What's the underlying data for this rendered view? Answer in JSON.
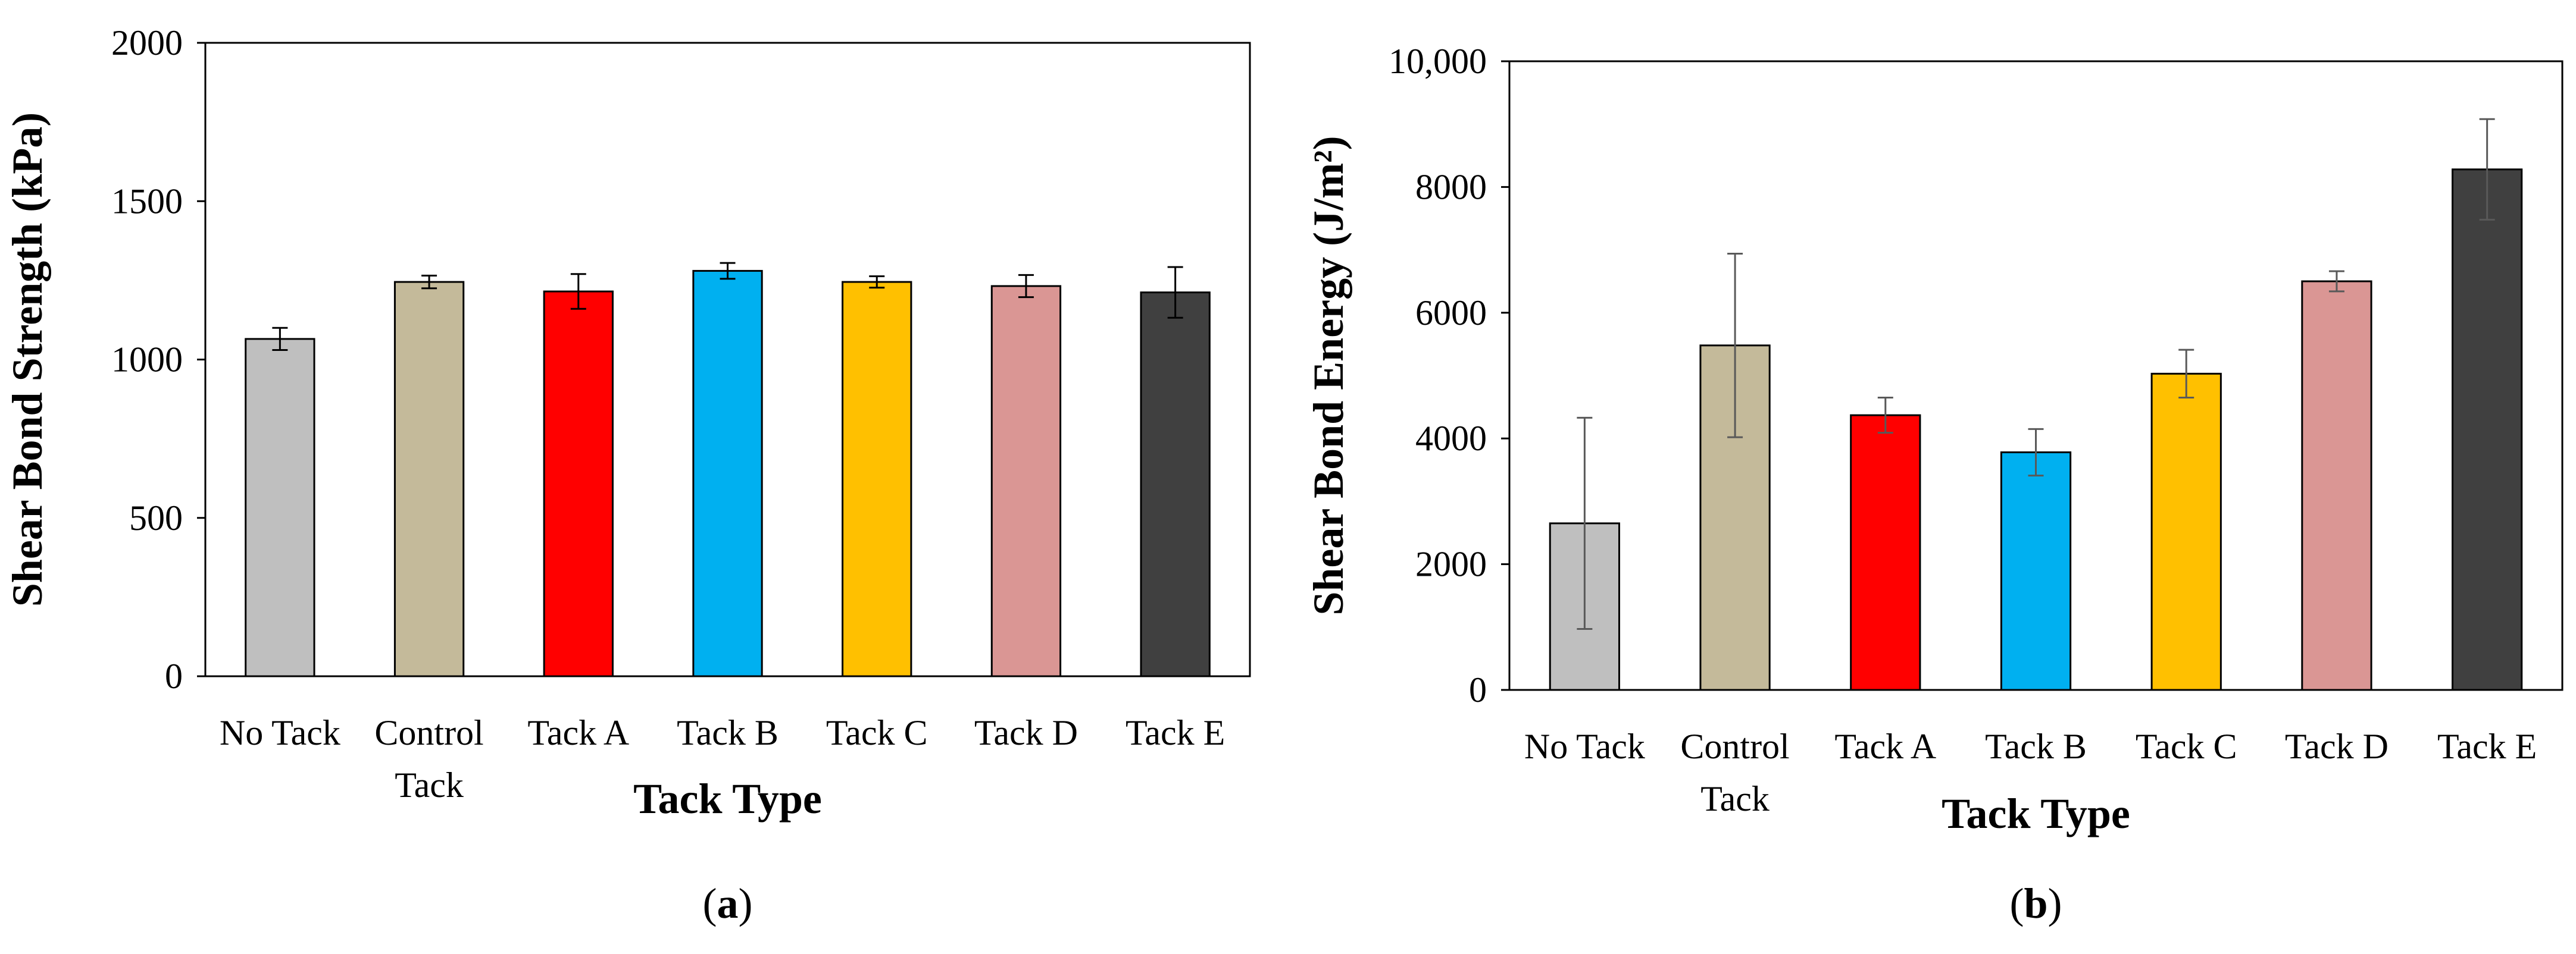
{
  "chart_data": [
    {
      "type": "bar",
      "panel_label": {
        "open": "(",
        "letter": "a",
        "close": ")"
      },
      "title": "",
      "xlabel": "Tack Type",
      "ylabel": "Shear Bond Strength (kPa)",
      "ylim": [
        0,
        2000
      ],
      "yticks": [
        0,
        500,
        1000,
        1500,
        2000
      ],
      "ytick_labels": [
        "0",
        "500",
        "1000",
        "1500",
        "2000"
      ],
      "grid": false,
      "legend": "none",
      "categories": [
        [
          "No Tack"
        ],
        [
          "Control",
          "Tack"
        ],
        [
          "Tack A"
        ],
        [
          "Tack B"
        ],
        [
          "Tack C"
        ],
        [
          "Tack D"
        ],
        [
          "Tack E"
        ]
      ],
      "values": [
        1065,
        1245,
        1215,
        1280,
        1245,
        1232,
        1212
      ],
      "error": [
        35,
        20,
        55,
        25,
        18,
        35,
        80
      ],
      "colors": [
        "#BFBFBF",
        "#C4BA9A",
        "#FF0000",
        "#00B0F0",
        "#FFC000",
        "#DA9694",
        "#404040"
      ],
      "error_color": "#000000"
    },
    {
      "type": "bar",
      "panel_label": {
        "open": "(",
        "letter": "b",
        "close": ")"
      },
      "title": "",
      "xlabel": "Tack Type",
      "ylabel": "Shear Bond Energy (J/m²)",
      "ylim": [
        0,
        10000
      ],
      "yticks": [
        0,
        2000,
        4000,
        6000,
        8000,
        10000
      ],
      "ytick_labels": [
        "0",
        "2000",
        "4000",
        "6000",
        "8000",
        "10,000"
      ],
      "grid": false,
      "legend": "none",
      "categories": [
        [
          "No Tack"
        ],
        [
          "Control",
          "Tack"
        ],
        [
          "Tack A"
        ],
        [
          "Tack B"
        ],
        [
          "Tack C"
        ],
        [
          "Tack D"
        ],
        [
          "Tack E"
        ]
      ],
      "values": [
        2650,
        5480,
        4370,
        3780,
        5030,
        6500,
        8280
      ],
      "error": [
        1680,
        1460,
        280,
        370,
        380,
        160,
        800
      ],
      "colors": [
        "#BFBFBF",
        "#C4BA9A",
        "#FF0000",
        "#00B0F0",
        "#FFC000",
        "#DA9694",
        "#404040"
      ],
      "error_color": "#595959"
    }
  ]
}
